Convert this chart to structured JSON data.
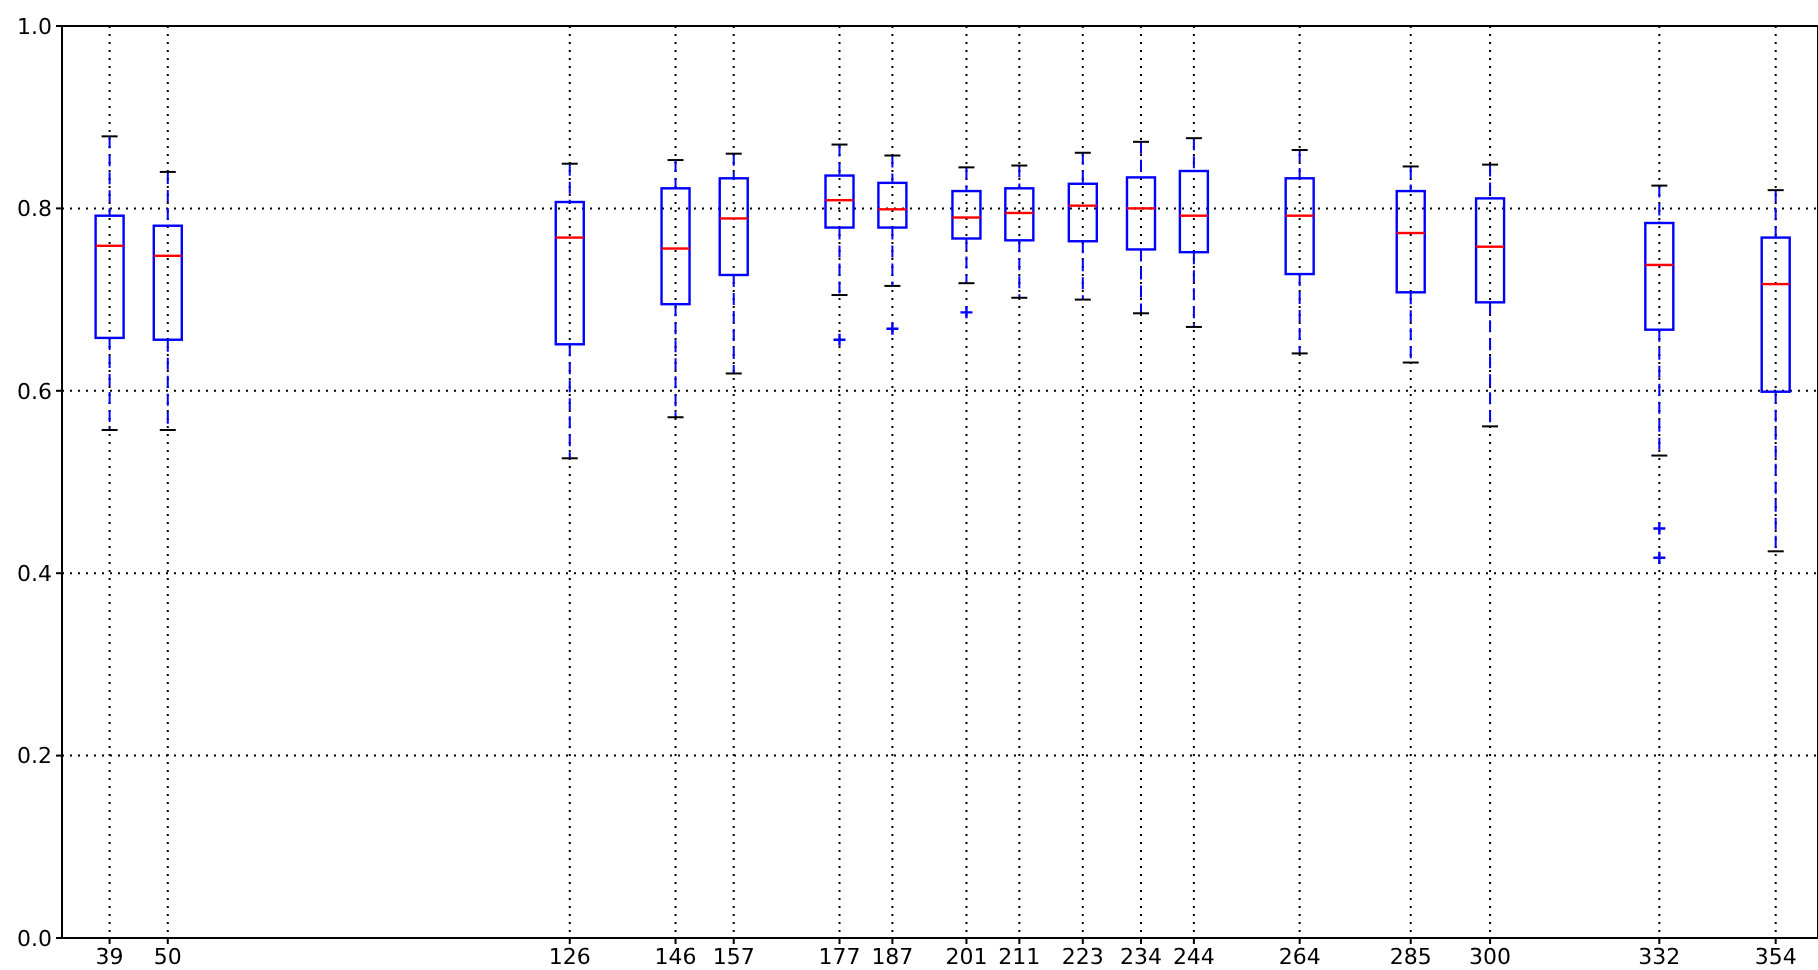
{
  "chart_data": {
    "type": "box",
    "x": [
      39,
      50,
      126,
      146,
      157,
      177,
      187,
      201,
      211,
      223,
      234,
      244,
      264,
      285,
      300,
      332,
      354
    ],
    "xlim": [
      30,
      362
    ],
    "ylim": [
      0,
      1
    ],
    "xticks": [
      39,
      50,
      126,
      146,
      157,
      177,
      187,
      201,
      211,
      223,
      234,
      244,
      264,
      285,
      300,
      332,
      354
    ],
    "yticks": [
      {
        "value": 0,
        "label": "0.0"
      },
      {
        "value": 0.2,
        "label": "0.2"
      },
      {
        "value": 0.4,
        "label": "0.4"
      },
      {
        "value": 0.6,
        "label": "0.6"
      },
      {
        "value": 0.8,
        "label": "0.8"
      },
      {
        "value": 1,
        "label": "1.0"
      }
    ],
    "grid": true,
    "series": [
      {
        "color": "#0000ff",
        "boxes": [
          {
            "low": 0.557,
            "q1": 0.658,
            "median": 0.759,
            "q3": 0.792,
            "high": 0.879
          },
          {
            "low": 0.557,
            "q1": 0.656,
            "median": 0.748,
            "q3": 0.781,
            "high": 0.84
          },
          {
            "low": 0.526,
            "q1": 0.651,
            "median": 0.768,
            "q3": 0.807,
            "high": 0.849
          },
          {
            "low": 0.571,
            "q1": 0.695,
            "median": 0.756,
            "q3": 0.822,
            "high": 0.853
          },
          {
            "low": 0.619,
            "q1": 0.727,
            "median": 0.789,
            "q3": 0.833,
            "high": 0.86
          },
          {
            "low": 0.705,
            "q1": 0.779,
            "median": 0.809,
            "q3": 0.836,
            "high": 0.87,
            "outliers": [
              0.656
            ]
          },
          {
            "low": 0.715,
            "q1": 0.779,
            "median": 0.799,
            "q3": 0.828,
            "high": 0.858,
            "outliers": [
              0.668
            ]
          },
          {
            "low": 0.718,
            "q1": 0.767,
            "median": 0.79,
            "q3": 0.819,
            "high": 0.845,
            "outliers": [
              0.686
            ]
          },
          {
            "low": 0.702,
            "q1": 0.765,
            "median": 0.795,
            "q3": 0.822,
            "high": 0.847
          },
          {
            "low": 0.7,
            "q1": 0.764,
            "median": 0.803,
            "q3": 0.827,
            "high": 0.861
          },
          {
            "low": 0.685,
            "q1": 0.755,
            "median": 0.8,
            "q3": 0.834,
            "high": 0.873
          },
          {
            "low": 0.67,
            "q1": 0.752,
            "median": 0.792,
            "q3": 0.841,
            "high": 0.877
          },
          {
            "low": 0.641,
            "q1": 0.728,
            "median": 0.792,
            "q3": 0.833,
            "high": 0.864
          },
          {
            "low": 0.631,
            "q1": 0.708,
            "median": 0.773,
            "q3": 0.819,
            "high": 0.846
          },
          {
            "low": 0.561,
            "q1": 0.697,
            "median": 0.758,
            "q3": 0.811,
            "high": 0.848
          },
          {
            "low": 0.529,
            "q1": 0.667,
            "median": 0.738,
            "q3": 0.784,
            "high": 0.825,
            "outliers": [
              0.449,
              0.417
            ]
          },
          {
            "low": 0.424,
            "q1": 0.599,
            "median": 0.717,
            "q3": 0.768,
            "high": 0.82
          }
        ]
      }
    ]
  }
}
